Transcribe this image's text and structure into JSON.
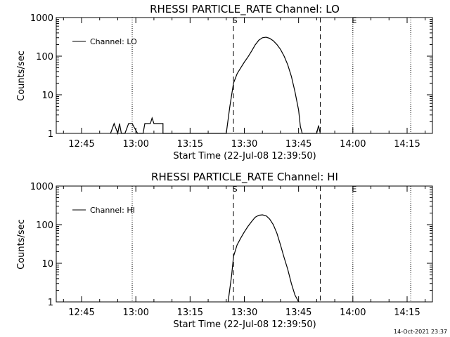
{
  "footer": {
    "timestamp": "14-Oct-2021 23:37"
  },
  "chart_data": [
    {
      "type": "line",
      "title": "RHESSI PARTICLE_RATE Channel: LO",
      "xlabel": "Start Time (22-Jul-08 12:39:50)",
      "ylabel": "Counts/sec",
      "y_scale": "log",
      "ylim": [
        1,
        1000
      ],
      "y_ticks": [
        "1",
        "10",
        "100",
        "1000"
      ],
      "xlim": [
        "12:38",
        "14:22"
      ],
      "x_ticks": [
        "12:45",
        "13:00",
        "13:15",
        "13:30",
        "13:45",
        "14:00",
        "14:15"
      ],
      "legend": {
        "position": "top-left",
        "entries": [
          "Channel: LO"
        ]
      },
      "markers": [
        {
          "label": "S",
          "time": "13:27",
          "style": "dashed"
        },
        {
          "label": "",
          "time": "13:51",
          "style": "dashed"
        },
        {
          "label": "",
          "time": "12:59",
          "style": "dotted"
        },
        {
          "label": "E",
          "time": "14:00",
          "style": "dotted"
        },
        {
          "label": "",
          "time": "14:16",
          "style": "dotted"
        }
      ],
      "series": [
        {
          "name": "Channel: LO",
          "points": [
            [
              "12:53",
              1
            ],
            [
              "12:54",
              1.8
            ],
            [
              "12:55",
              1
            ],
            [
              "12:55.5",
              1.8
            ],
            [
              "12:56",
              1
            ],
            [
              "12:57",
              1
            ],
            [
              "12:58",
              1.8
            ],
            [
              "12:59",
              1.8
            ],
            [
              "13:00",
              1.2
            ],
            [
              "13:00.5",
              1
            ],
            [
              "13:02",
              1
            ],
            [
              "13:02.5",
              1.8
            ],
            [
              "13:04",
              1.8
            ],
            [
              "13:04.5",
              2.5
            ],
            [
              "13:05",
              1.8
            ],
            [
              "13:07.5",
              1.8
            ],
            [
              "13:07.5",
              1
            ],
            [
              "13:25",
              1
            ],
            [
              "13:26",
              5
            ],
            [
              "13:27",
              20
            ],
            [
              "13:28",
              35
            ],
            [
              "13:29",
              50
            ],
            [
              "13:30",
              70
            ],
            [
              "13:31",
              95
            ],
            [
              "13:32",
              135
            ],
            [
              "13:33",
              195
            ],
            [
              "13:34",
              260
            ],
            [
              "13:35",
              300
            ],
            [
              "13:36",
              310
            ],
            [
              "13:37",
              290
            ],
            [
              "13:38",
              250
            ],
            [
              "13:39",
              200
            ],
            [
              "13:40",
              150
            ],
            [
              "13:41",
              100
            ],
            [
              "13:42",
              60
            ],
            [
              "13:43",
              30
            ],
            [
              "13:44",
              12
            ],
            [
              "13:45",
              4
            ],
            [
              "13:45.5",
              1.5
            ],
            [
              "13:46",
              1
            ],
            [
              "13:50",
              1
            ],
            [
              "13:50.5",
              1.6
            ],
            [
              "13:51",
              1
            ]
          ]
        }
      ]
    },
    {
      "type": "line",
      "title": "RHESSI PARTICLE_RATE Channel: HI",
      "xlabel": "Start Time (22-Jul-08 12:39:50)",
      "ylabel": "Counts/sec",
      "y_scale": "log",
      "ylim": [
        1,
        1000
      ],
      "y_ticks": [
        "1",
        "10",
        "100",
        "1000"
      ],
      "xlim": [
        "12:38",
        "14:22"
      ],
      "x_ticks": [
        "12:45",
        "13:00",
        "13:15",
        "13:30",
        "13:45",
        "14:00",
        "14:15"
      ],
      "legend": {
        "position": "top-left",
        "entries": [
          "Channel: HI"
        ]
      },
      "markers": [
        {
          "label": "S",
          "time": "13:27",
          "style": "dashed"
        },
        {
          "label": "",
          "time": "13:51",
          "style": "dashed"
        },
        {
          "label": "",
          "time": "12:59",
          "style": "dotted"
        },
        {
          "label": "E",
          "time": "14:00",
          "style": "dotted"
        },
        {
          "label": "",
          "time": "14:16",
          "style": "dotted"
        }
      ],
      "series": [
        {
          "name": "Channel: HI",
          "points": [
            [
              "13:25.5",
              1
            ],
            [
              "13:26.5",
              5
            ],
            [
              "13:27",
              15
            ],
            [
              "13:28",
              30
            ],
            [
              "13:29",
              45
            ],
            [
              "13:30",
              65
            ],
            [
              "13:31",
              90
            ],
            [
              "13:32",
              120
            ],
            [
              "13:33",
              155
            ],
            [
              "13:34",
              175
            ],
            [
              "13:35",
              180
            ],
            [
              "13:36",
              170
            ],
            [
              "13:37",
              140
            ],
            [
              "13:38",
              100
            ],
            [
              "13:39",
              60
            ],
            [
              "13:40",
              30
            ],
            [
              "13:41",
              14
            ],
            [
              "13:42",
              7
            ],
            [
              "13:43",
              3
            ],
            [
              "13:44",
              1.5
            ],
            [
              "13:45",
              1
            ]
          ]
        }
      ]
    }
  ]
}
